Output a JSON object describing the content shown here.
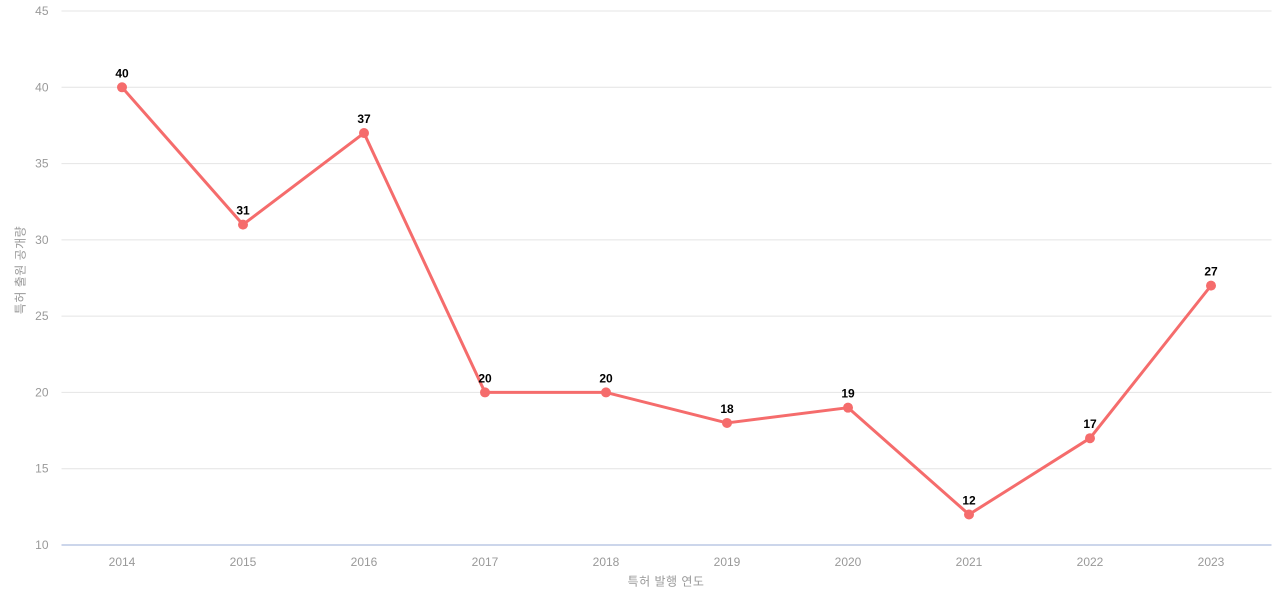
{
  "chart_data": {
    "type": "line",
    "title": "",
    "categories": [
      "2014",
      "2015",
      "2016",
      "2017",
      "2018",
      "2019",
      "2020",
      "2021",
      "2022",
      "2023"
    ],
    "values": [
      40,
      31,
      37,
      20,
      20,
      18,
      19,
      12,
      17,
      27
    ],
    "xlabel": "특허 발행 연도",
    "ylabel": "특허 출원 공개량",
    "ylim": [
      10,
      45
    ],
    "y_ticks": [
      10,
      15,
      20,
      25,
      30,
      35,
      40,
      45
    ],
    "grid": "horizontal",
    "legend_position": "none",
    "data_labels_visible": true,
    "colors": {
      "line": "#f56c6c",
      "marker": "#f56c6c",
      "gridline": "#e4e4e4",
      "axis_line": "#ccd6eb",
      "tick_label": "#999999",
      "data_label": "#000000",
      "background": "#ffffff"
    },
    "style": {
      "line_width": 3,
      "marker_radius": 5,
      "tick_font_size": 12,
      "data_label_font_size": 12
    }
  }
}
